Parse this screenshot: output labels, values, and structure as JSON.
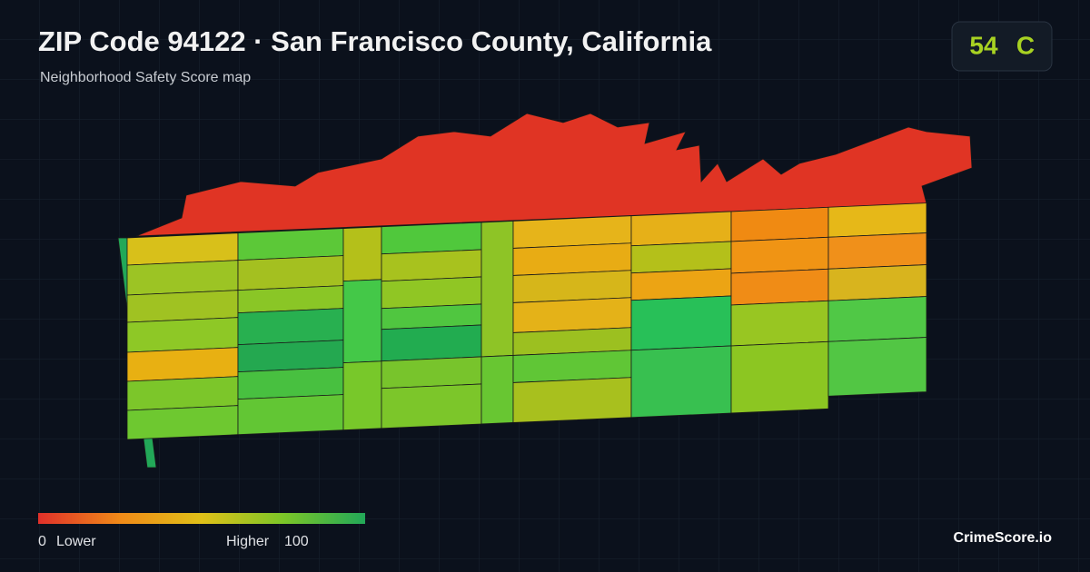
{
  "header": {
    "title": "ZIP Code 94122 · San Francisco County, California",
    "subtitle": "Neighborhood Safety Score map"
  },
  "score": {
    "value": 54,
    "grade": "C"
  },
  "legend": {
    "min": 0,
    "min_label": "Lower",
    "max_label": "Higher",
    "max": 100
  },
  "brand": "CrimeScore.io"
}
